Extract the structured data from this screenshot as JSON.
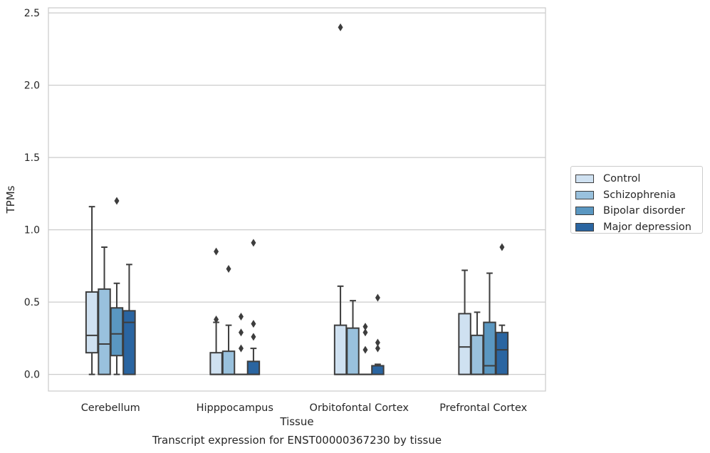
{
  "chart_data": {
    "type": "box",
    "title": "Transcript expression for ENST00000367230 by tissue",
    "xlabel": "Tissue",
    "ylabel": "TPMs",
    "ylim": [
      -0.115,
      2.535
    ],
    "yticks": [
      "0.0",
      "0.5",
      "1.0",
      "1.5",
      "2.0",
      "2.5"
    ],
    "grid": true,
    "legend_position": "right",
    "categories": [
      "Cerebellum",
      "Hipppocampus",
      "Orbitofontal Cortex",
      "Prefrontal Cortex"
    ],
    "series": [
      {
        "name": "Control",
        "color": "#cfe1f1",
        "boxes": [
          {
            "low": 0.0,
            "q1": 0.15,
            "median": 0.27,
            "q3": 0.57,
            "high": 1.16,
            "outliers": []
          },
          {
            "low": 0.0,
            "q1": 0.0,
            "median": 0.0,
            "q3": 0.15,
            "high": 0.36,
            "outliers": [
              0.38,
              0.85
            ]
          },
          {
            "low": 0.0,
            "q1": 0.0,
            "median": 0.0,
            "q3": 0.34,
            "high": 0.61,
            "outliers": [
              2.4
            ]
          },
          {
            "low": 0.0,
            "q1": 0.0,
            "median": 0.19,
            "q3": 0.42,
            "high": 0.72,
            "outliers": []
          }
        ]
      },
      {
        "name": "Schizophrenia",
        "color": "#99c1dd",
        "boxes": [
          {
            "low": 0.0,
            "q1": 0.0,
            "median": 0.21,
            "q3": 0.59,
            "high": 0.88,
            "outliers": []
          },
          {
            "low": 0.0,
            "q1": 0.0,
            "median": 0.0,
            "q3": 0.16,
            "high": 0.34,
            "outliers": [
              0.73
            ]
          },
          {
            "low": 0.0,
            "q1": 0.0,
            "median": 0.0,
            "q3": 0.32,
            "high": 0.51,
            "outliers": []
          },
          {
            "low": 0.0,
            "q1": 0.0,
            "median": 0.0,
            "q3": 0.27,
            "high": 0.43,
            "outliers": []
          }
        ]
      },
      {
        "name": "Bipolar disorder",
        "color": "#5a97c1",
        "boxes": [
          {
            "low": 0.0,
            "q1": 0.13,
            "median": 0.28,
            "q3": 0.46,
            "high": 0.63,
            "outliers": [
              1.2
            ]
          },
          {
            "low": 0.0,
            "q1": 0.0,
            "median": 0.0,
            "q3": 0.0,
            "high": 0.0,
            "outliers": [
              0.18,
              0.29,
              0.4
            ]
          },
          {
            "low": 0.0,
            "q1": 0.0,
            "median": 0.0,
            "q3": 0.0,
            "high": 0.0,
            "outliers": [
              0.17,
              0.29,
              0.33
            ]
          },
          {
            "low": 0.0,
            "q1": 0.0,
            "median": 0.06,
            "q3": 0.36,
            "high": 0.7,
            "outliers": []
          }
        ]
      },
      {
        "name": "Major depression",
        "color": "#2a65a1",
        "boxes": [
          {
            "low": 0.0,
            "q1": 0.0,
            "median": 0.36,
            "q3": 0.44,
            "high": 0.76,
            "outliers": []
          },
          {
            "low": 0.0,
            "q1": 0.0,
            "median": 0.0,
            "q3": 0.09,
            "high": 0.18,
            "outliers": [
              0.26,
              0.35,
              0.91
            ]
          },
          {
            "low": 0.0,
            "q1": 0.0,
            "median": 0.06,
            "q3": 0.06,
            "high": 0.07,
            "outliers": [
              0.18,
              0.22,
              0.53
            ]
          },
          {
            "low": 0.0,
            "q1": 0.0,
            "median": 0.17,
            "q3": 0.29,
            "high": 0.34,
            "outliers": [
              0.88
            ]
          }
        ]
      }
    ]
  }
}
